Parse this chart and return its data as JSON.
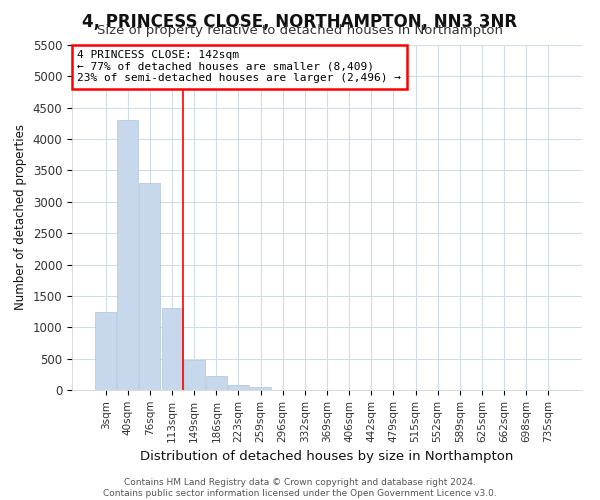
{
  "title": "4, PRINCESS CLOSE, NORTHAMPTON, NN3 3NR",
  "subtitle": "Size of property relative to detached houses in Northampton",
  "xlabel": "Distribution of detached houses by size in Northampton",
  "ylabel": "Number of detached properties",
  "footnote1": "Contains HM Land Registry data © Crown copyright and database right 2024.",
  "footnote2": "Contains public sector information licensed under the Open Government Licence v3.0.",
  "annotation_line1": "4 PRINCESS CLOSE: 142sqm",
  "annotation_line2": "← 77% of detached houses are smaller (8,409)",
  "annotation_line3": "23% of semi-detached houses are larger (2,496) →",
  "bar_labels": [
    "3sqm",
    "40sqm",
    "76sqm",
    "113sqm",
    "149sqm",
    "186sqm",
    "223sqm",
    "259sqm",
    "296sqm",
    "332sqm",
    "369sqm",
    "406sqm",
    "442sqm",
    "479sqm",
    "515sqm",
    "552sqm",
    "589sqm",
    "625sqm",
    "662sqm",
    "698sqm",
    "735sqm"
  ],
  "bar_values": [
    1250,
    4300,
    3300,
    1300,
    480,
    230,
    80,
    50,
    0,
    0,
    0,
    0,
    0,
    0,
    0,
    0,
    0,
    0,
    0,
    0,
    0
  ],
  "bar_color": "#c8d8ec",
  "bar_edge_color": "#b0c4de",
  "red_line_index": 3.5,
  "ylim": [
    0,
    5500
  ],
  "yticks": [
    0,
    500,
    1000,
    1500,
    2000,
    2500,
    3000,
    3500,
    4000,
    4500,
    5000,
    5500
  ],
  "bg_color": "#ffffff",
  "plot_bg_color": "#ffffff",
  "grid_color": "#d0dce8",
  "title_fontsize": 12,
  "subtitle_fontsize": 10
}
